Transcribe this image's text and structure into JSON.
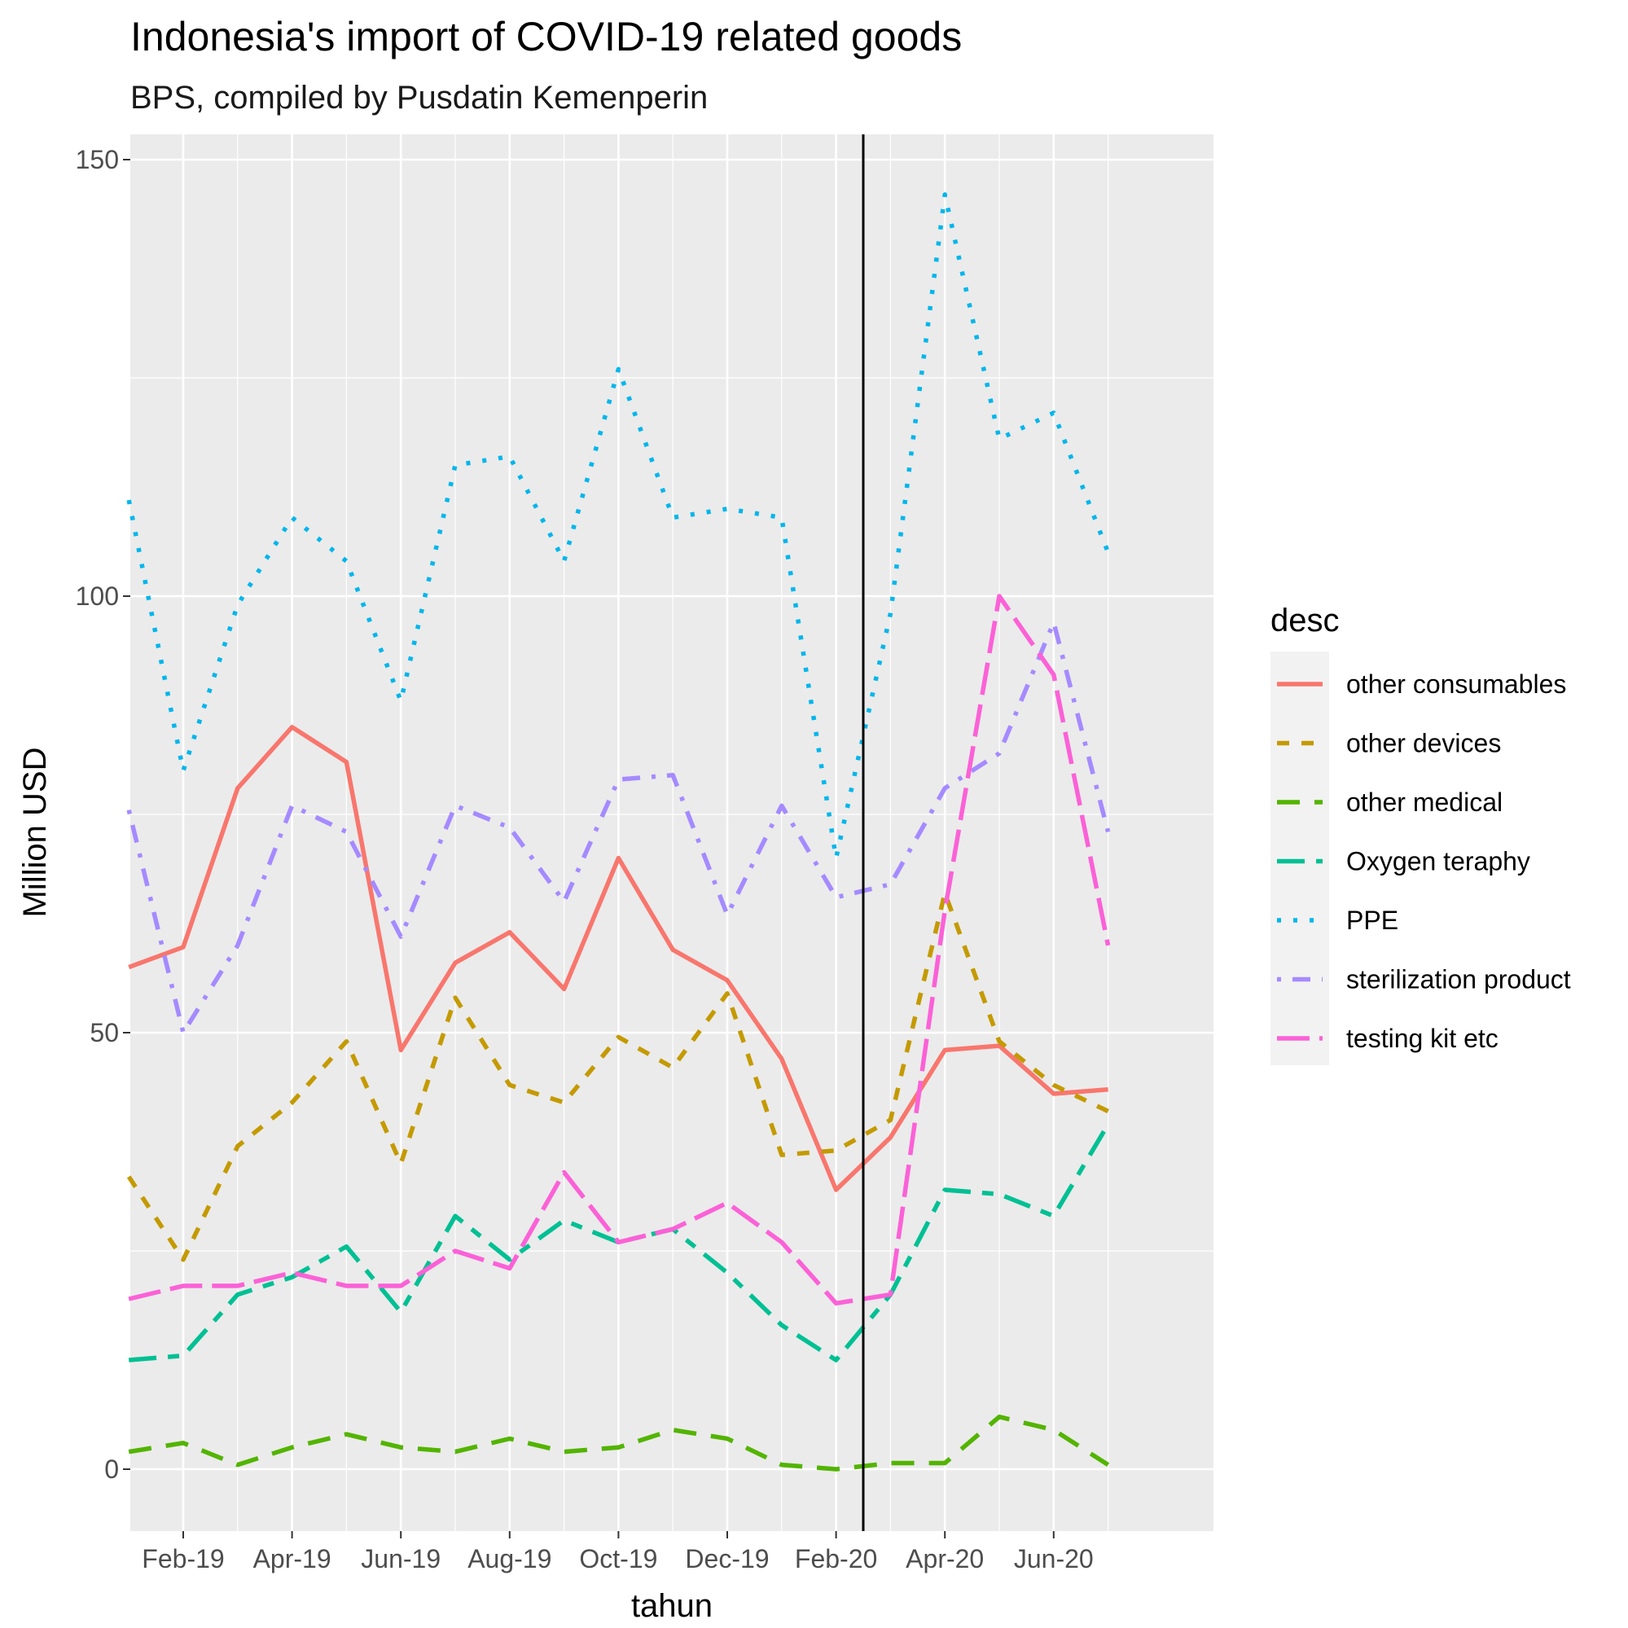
{
  "chart_data": {
    "type": "line",
    "title": "Indonesia's import of COVID-19 related goods",
    "subtitle": "BPS, compiled by Pusdatin Kemenperin",
    "xlabel": "tahun",
    "ylabel": "Million USD",
    "x": [
      "Jan-19",
      "Feb-19",
      "Mar-19",
      "Apr-19",
      "May-19",
      "Jun-19",
      "Jul-19",
      "Aug-19",
      "Sep-19",
      "Oct-19",
      "Nov-19",
      "Dec-19",
      "Jan-20",
      "Feb-20",
      "Mar-20",
      "Apr-20",
      "May-20",
      "Jun-20",
      "Jul-20"
    ],
    "x_tick_labels": [
      "Feb-19",
      "Apr-19",
      "Jun-19",
      "Aug-19",
      "Oct-19",
      "Dec-19",
      "Feb-20",
      "Apr-20",
      "Jun-20"
    ],
    "y_ticks": [
      0,
      50,
      100,
      150
    ],
    "ylim": [
      -7,
      153
    ],
    "grid": true,
    "vline_between": [
      "Feb-20",
      "Mar-20"
    ],
    "legend": {
      "title": "desc",
      "position": "right"
    },
    "series": [
      {
        "name": "other consumables",
        "color": "#F8766D",
        "dash": "solid",
        "values": [
          57.5,
          59.8,
          78.0,
          85.0,
          81.0,
          48.0,
          58.0,
          61.5,
          55.0,
          70.0,
          59.5,
          56.0,
          47.0,
          32.0,
          38.0,
          48.0,
          48.5,
          43.0,
          43.5
        ]
      },
      {
        "name": "other devices",
        "color": "#C49A00",
        "dash": "dashed",
        "values": [
          33.5,
          24.0,
          37.0,
          42.0,
          49.0,
          35.0,
          54.0,
          44.0,
          42.0,
          49.5,
          46.0,
          54.5,
          36.0,
          36.5,
          40.0,
          66.0,
          49.0,
          44.0,
          41.0
        ]
      },
      {
        "name": "other medical",
        "color": "#53B400",
        "dash": "longdash",
        "values": [
          2.0,
          3.0,
          0.5,
          2.5,
          4.0,
          2.5,
          2.0,
          3.5,
          2.0,
          2.5,
          4.5,
          3.5,
          0.5,
          0.0,
          0.7,
          0.7,
          6.0,
          4.5,
          0.5
        ]
      },
      {
        "name": "Oxygen teraphy",
        "color": "#00C094",
        "dash": "twodash",
        "values": [
          12.5,
          13.0,
          20.0,
          22.0,
          25.5,
          18.0,
          29.0,
          24.0,
          28.5,
          26.0,
          27.5,
          22.5,
          16.5,
          12.5,
          20.0,
          32.0,
          31.5,
          29.0,
          39.5
        ]
      },
      {
        "name": "PPE",
        "color": "#00B6EB",
        "dash": "dotted",
        "values": [
          111.0,
          80.0,
          99.0,
          109.0,
          104.0,
          88.0,
          115.0,
          116.0,
          104.0,
          126.0,
          109.0,
          110.0,
          109.0,
          70.0,
          98.0,
          146.0,
          118.0,
          121.0,
          105.0
        ]
      },
      {
        "name": "sterilization product",
        "color": "#A58AFF",
        "dash": "dotdash",
        "values": [
          75.5,
          50.0,
          60.0,
          76.0,
          73.0,
          61.0,
          76.0,
          73.5,
          65.0,
          79.0,
          79.5,
          63.5,
          76.0,
          65.5,
          67.0,
          78.0,
          82.0,
          97.0,
          73.0
        ]
      },
      {
        "name": "testing kit etc",
        "color": "#FB61D7",
        "dash": "longdash2",
        "values": [
          19.5,
          21.0,
          21.0,
          22.5,
          21.0,
          21.0,
          25.0,
          23.0,
          34.0,
          26.0,
          27.5,
          30.5,
          26.0,
          19.0,
          20.0,
          64.0,
          100.0,
          91.0,
          60.0
        ]
      }
    ]
  }
}
